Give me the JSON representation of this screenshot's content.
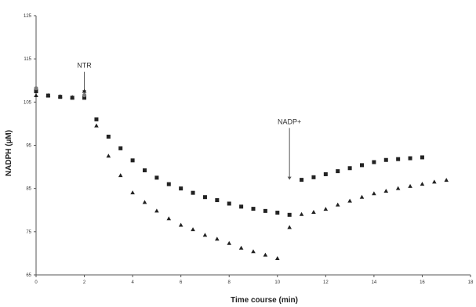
{
  "chart_data": {
    "type": "scatter",
    "xlabel": "Time course (min)",
    "ylabel": "NADPH (µM)",
    "xlim": [
      0,
      18
    ],
    "ylim": [
      65,
      125
    ],
    "xticks": [
      "0",
      "2",
      "4",
      "6",
      "8",
      "10",
      "12",
      "14",
      "16",
      "18"
    ],
    "yticks": [
      "65",
      "75",
      "85",
      "95",
      "105",
      "115",
      "125"
    ],
    "grid": false,
    "series": [
      {
        "marker": "square",
        "color": "#222222",
        "x": [
          0,
          0.5,
          1,
          1.5,
          2,
          2.5,
          3,
          3.5,
          4,
          4.5,
          5,
          5.5,
          6,
          6.5,
          7,
          7.5,
          8,
          8.5,
          9,
          9.5,
          10,
          10.5,
          11,
          11.5,
          12,
          12.5,
          13,
          13.5,
          14,
          14.5,
          15,
          15.5,
          16
        ],
        "y": [
          107.5,
          106.5,
          106.2,
          106,
          106,
          101,
          97,
          94.3,
          91.5,
          89.2,
          87.5,
          86,
          85,
          84,
          83,
          82.3,
          81.5,
          80.8,
          80.3,
          79.8,
          79.4,
          78.9,
          87,
          87.6,
          88.3,
          89,
          89.7,
          90.4,
          91.1,
          91.6,
          91.8,
          92,
          92.2
        ]
      },
      {
        "marker": "triangle",
        "color": "#222222",
        "x": [
          0,
          0.5,
          1,
          1.5,
          2,
          2.5,
          3,
          3.5,
          4,
          4.5,
          5,
          5.5,
          6,
          6.5,
          7,
          7.5,
          8,
          8.5,
          9,
          9.5,
          10,
          10.5,
          11,
          11.5,
          12,
          12.5,
          13,
          13.5,
          14,
          14.5,
          15,
          15.5,
          16,
          16.5,
          17
        ],
        "y": [
          106.5,
          106.5,
          106.3,
          106.1,
          107.5,
          99.5,
          92.5,
          88,
          84,
          81.8,
          79.8,
          78,
          76.5,
          75.5,
          74.2,
          73.3,
          72.3,
          71.2,
          70.4,
          69.6,
          68.8,
          76,
          79,
          79.5,
          80.2,
          81.2,
          82.1,
          83,
          83.8,
          84.4,
          85,
          85.5,
          86,
          86.5,
          86.9
        ]
      }
    ],
    "annotations": [
      {
        "text": "NTR",
        "x": 2,
        "y_from": 112,
        "y_to": 107
      },
      {
        "text": "NADP+",
        "x": 10.5,
        "y_from": 99,
        "y_to": 87
      }
    ],
    "extra_points": [
      {
        "x": 0,
        "y": 108.2,
        "marker": "circle",
        "color": "#7a7a7a"
      },
      {
        "x": 2,
        "y": 106.6,
        "marker": "circle",
        "color": "#7a7a7a"
      }
    ]
  }
}
